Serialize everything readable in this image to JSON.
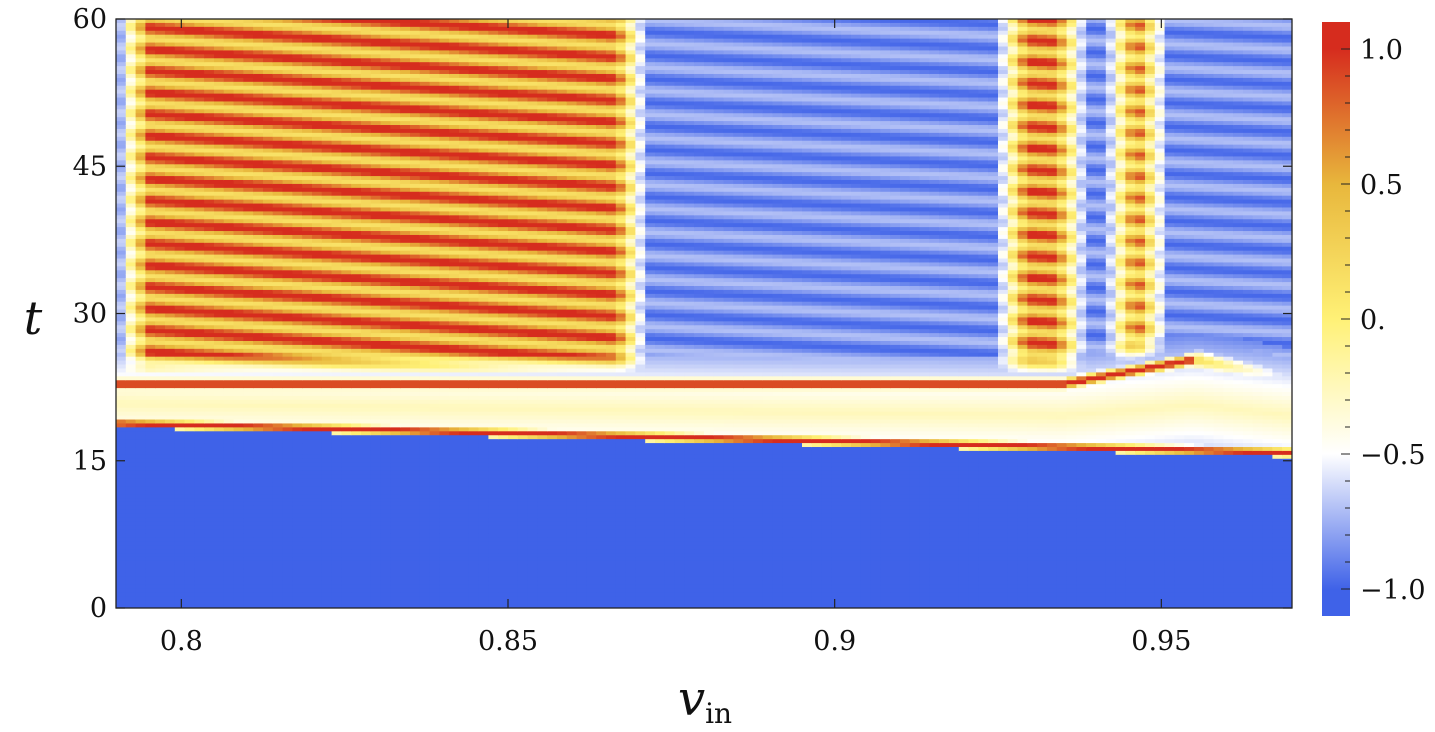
{
  "chart_data": {
    "type": "heatmap",
    "title": "",
    "xlabel": "v",
    "xlabel_sub": "in",
    "ylabel": "t",
    "xlim": [
      0.79,
      0.97
    ],
    "ylim": [
      0,
      60
    ],
    "x_ticks": [
      {
        "value": 0.8,
        "label": "0.8"
      },
      {
        "value": 0.85,
        "label": "0.85"
      },
      {
        "value": 0.9,
        "label": "0.9"
      },
      {
        "value": 0.95,
        "label": "0.95"
      }
    ],
    "y_ticks": [
      {
        "value": 0,
        "label": "0"
      },
      {
        "value": 15,
        "label": "15"
      },
      {
        "value": 30,
        "label": "30"
      },
      {
        "value": 45,
        "label": "45"
      },
      {
        "value": 60,
        "label": "60"
      }
    ],
    "colorbar": {
      "range": [
        -1.1,
        1.1
      ],
      "ticks": [
        {
          "value": 1.0,
          "label": "1.0"
        },
        {
          "value": 0.5,
          "label": "0.5"
        },
        {
          "value": 0.0,
          "label": "0."
        },
        {
          "value": -0.5,
          "label": "−0.5"
        },
        {
          "value": -1.0,
          "label": "−1.0"
        }
      ],
      "colors": [
        "#3f62e8",
        "#ffffff",
        "#fff176",
        "#e8b73c",
        "#d62c1e"
      ]
    },
    "features": {
      "first_collision_line": {
        "t_at_xmin": 18.8,
        "t_at_xmax": 15.8
      },
      "second_band_t": 22.8,
      "bounce_windows": [
        {
          "v_start": 0.79,
          "v_end": 0.8715
        },
        {
          "v_start": 0.9245,
          "v_end": 0.9388
        },
        {
          "v_start": 0.9412,
          "v_end": 0.9512
        }
      ]
    }
  }
}
